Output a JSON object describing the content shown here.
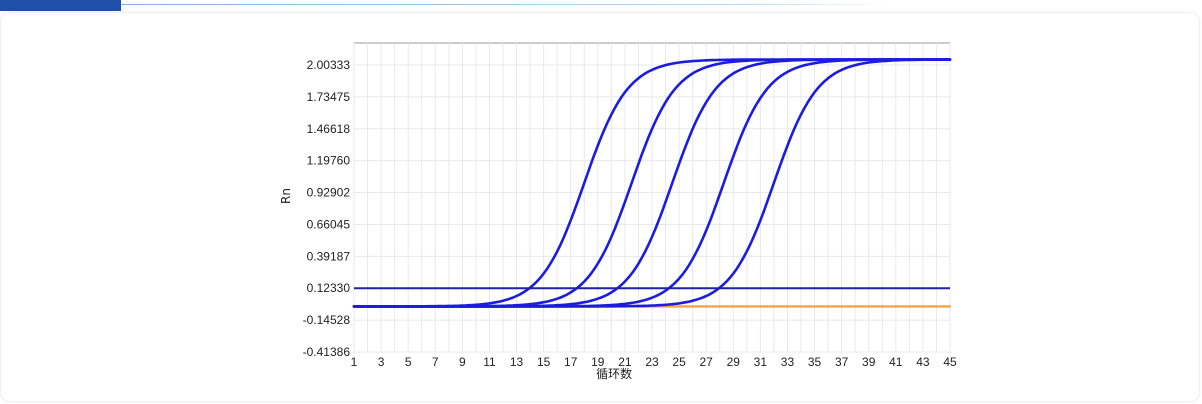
{
  "chart_data": {
    "type": "line",
    "xlabel": "循环数",
    "ylabel": "Rn",
    "xlim": [
      1,
      45
    ],
    "ylim": [
      -0.41386,
      2.1
    ],
    "grid": true,
    "x_ticks": [
      "1",
      "3",
      "5",
      "7",
      "9",
      "11",
      "13",
      "15",
      "17",
      "19",
      "21",
      "23",
      "25",
      "27",
      "29",
      "31",
      "33",
      "35",
      "37",
      "39",
      "41",
      "43",
      "45"
    ],
    "y_ticks": [
      "-0.41386",
      "-0.14528",
      "0.12330",
      "0.39187",
      "0.66045",
      "0.92902",
      "1.19760",
      "1.46618",
      "1.73475",
      "2.00333"
    ],
    "threshold": 0.123,
    "series_params": {
      "baseline": -0.03,
      "plateau": 2.05,
      "midpoints": [
        18.0,
        21.5,
        24.5,
        28.3,
        32.0
      ],
      "slope": 1.6,
      "color": "#1c1ce0"
    },
    "series": [
      {
        "color": "#1c1ce0",
        "midpoint": 18.0
      },
      {
        "color": "#1c1ce0",
        "midpoint": 21.5
      },
      {
        "color": "#1c1ce0",
        "midpoint": 24.5
      },
      {
        "color": "#1c1ce0",
        "midpoint": 28.3
      },
      {
        "color": "#1c1ce0",
        "midpoint": 32.0
      },
      {
        "color": "#f4a24c",
        "flat": -0.03
      }
    ],
    "threshold_color": "#2020a8",
    "grid_color": "#e8e8ec"
  }
}
